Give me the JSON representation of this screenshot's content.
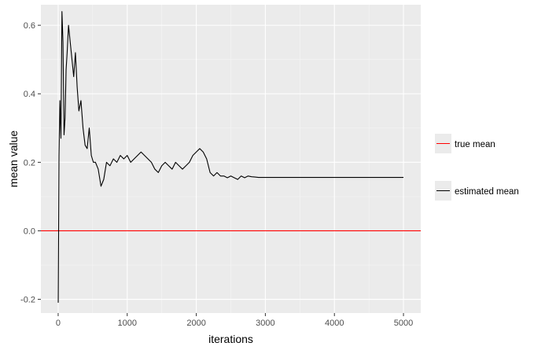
{
  "chart_data": {
    "type": "line",
    "title": "",
    "xlabel": "iterations",
    "ylabel": "mean value",
    "xlim": [
      -250,
      5250
    ],
    "ylim": [
      -0.24,
      0.66
    ],
    "x_ticks": [
      0,
      1000,
      2000,
      3000,
      4000,
      5000
    ],
    "x_tick_labels": [
      "0",
      "1000",
      "2000",
      "3000",
      "4000",
      "5000"
    ],
    "y_ticks": [
      -0.2,
      0.0,
      0.2,
      0.4,
      0.6
    ],
    "y_tick_labels": [
      "-0.2",
      "0.0",
      "0.2",
      "0.4",
      "0.6"
    ],
    "grid": true,
    "legend_position": "right",
    "series": [
      {
        "name": "true mean",
        "color": "#ff0000",
        "kind": "hline",
        "y": 0.0
      },
      {
        "name": "estimated mean",
        "color": "#000000",
        "x": [
          1,
          12,
          25,
          40,
          55,
          70,
          85,
          100,
          115,
          130,
          150,
          175,
          200,
          225,
          250,
          275,
          300,
          330,
          360,
          390,
          420,
          450,
          480,
          510,
          540,
          580,
          620,
          660,
          700,
          750,
          800,
          850,
          900,
          950,
          1000,
          1050,
          1100,
          1150,
          1200,
          1250,
          1300,
          1350,
          1400,
          1450,
          1500,
          1550,
          1600,
          1650,
          1700,
          1750,
          1800,
          1850,
          1900,
          1950,
          2000,
          2050,
          2100,
          2150,
          2200,
          2250,
          2300,
          2350,
          2400,
          2450,
          2500,
          2550,
          2600,
          2650,
          2700,
          2750,
          2800,
          2850,
          2900,
          5000
        ],
        "y": [
          -0.21,
          0.22,
          0.38,
          0.27,
          0.64,
          0.55,
          0.28,
          0.33,
          0.47,
          0.52,
          0.6,
          0.55,
          0.5,
          0.45,
          0.52,
          0.42,
          0.35,
          0.38,
          0.3,
          0.25,
          0.24,
          0.3,
          0.22,
          0.2,
          0.2,
          0.18,
          0.13,
          0.15,
          0.2,
          0.19,
          0.21,
          0.2,
          0.22,
          0.21,
          0.22,
          0.2,
          0.21,
          0.22,
          0.23,
          0.22,
          0.21,
          0.2,
          0.18,
          0.17,
          0.19,
          0.2,
          0.19,
          0.18,
          0.2,
          0.19,
          0.18,
          0.19,
          0.2,
          0.22,
          0.23,
          0.24,
          0.23,
          0.21,
          0.17,
          0.16,
          0.17,
          0.16,
          0.16,
          0.155,
          0.16,
          0.155,
          0.15,
          0.16,
          0.155,
          0.16,
          0.158,
          0.157,
          0.156,
          0.156
        ]
      }
    ]
  }
}
